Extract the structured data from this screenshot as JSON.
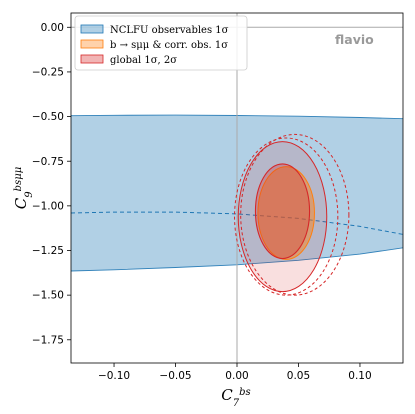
{
  "chart_data": {
    "type": "contour",
    "watermark": "flavio",
    "xlabel": "C_7^{bs}",
    "ylabel": "C_9^{bsμμ}",
    "xlim": [
      -0.135,
      0.135
    ],
    "ylim": [
      -1.88,
      0.08
    ],
    "x_ticks": [
      -0.1,
      -0.05,
      0.0,
      0.05,
      0.1
    ],
    "x_tick_labels": [
      "−0.10",
      "−0.05",
      "0.00",
      "0.05",
      "0.10"
    ],
    "y_ticks": [
      0.0,
      -0.25,
      -0.5,
      -0.75,
      -1.0,
      -1.25,
      -1.5,
      -1.75
    ],
    "y_tick_labels": [
      "0.00",
      "−0.25",
      "−0.50",
      "−0.75",
      "−1.00",
      "−1.25",
      "−1.50",
      "−1.75"
    ],
    "zero_lines": {
      "x": 0,
      "y": 0
    },
    "legend_position": "top-left",
    "colors": {
      "nclfu": "#1f77b4",
      "bsmumu": "#ff7f0e",
      "global": "#d62728",
      "zero_line": "#aaaaaa"
    },
    "series": [
      {
        "name": "NCLFU observables 1σ",
        "kind": "band",
        "x": [
          -0.135,
          -0.1,
          -0.05,
          0.0,
          0.05,
          0.1,
          0.135
        ],
        "upper": [
          -0.495,
          -0.493,
          -0.492,
          -0.494,
          -0.498,
          -0.505,
          -0.512
        ],
        "lower": [
          -1.365,
          -1.358,
          -1.345,
          -1.33,
          -1.305,
          -1.27,
          -1.235
        ],
        "central": [
          -1.04,
          -1.035,
          -1.035,
          -1.045,
          -1.07,
          -1.115,
          -1.16
        ]
      },
      {
        "name": "b → sμμ & corr. obs. 1σ",
        "kind": "ellipse",
        "center": [
          0.04,
          -1.04
        ],
        "semi_x": 0.023,
        "semi_y": 0.26
      },
      {
        "name": "global 1σ, 2σ",
        "kind": "ellipses",
        "one_sigma": {
          "center": [
            0.037,
            -1.03
          ],
          "semi_x": 0.022,
          "semi_y": 0.265
        },
        "two_sigma": {
          "center": [
            0.037,
            -1.06
          ],
          "semi_x": 0.036,
          "semi_y": 0.42
        }
      }
    ],
    "dashed_contours": [
      {
        "series": "b → sμμ & corr. obs. 1σ",
        "center": [
          0.04,
          -1.06
        ],
        "semi_x": 0.042,
        "semi_y": 0.44
      },
      {
        "series": "global 1σ, 2σ",
        "center": [
          0.047,
          -1.05
        ],
        "semi_x": 0.044,
        "semi_y": 0.45
      }
    ]
  }
}
